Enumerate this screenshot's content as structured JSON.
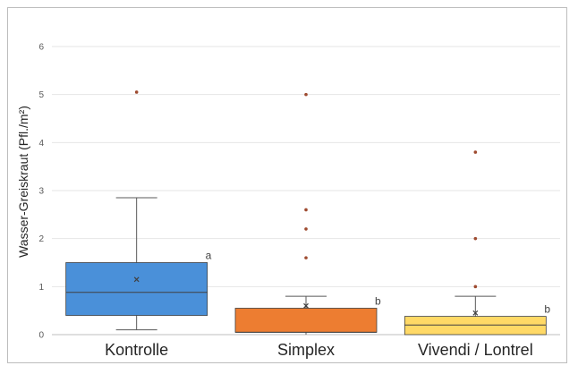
{
  "chart_data": {
    "type": "boxplot",
    "ylabel": "Wasser-Greiskraut (Pfl./m²)",
    "ylim": [
      0,
      6
    ],
    "yticks": [
      0,
      1,
      2,
      3,
      4,
      5,
      6
    ],
    "grid": true,
    "categories": [
      "Kontrolle",
      "Simplex",
      "Vivendi / Lontrel"
    ],
    "series": [
      {
        "category": "Kontrolle",
        "color": "#4a90d9",
        "whisker_low": 0.1,
        "q1": 0.4,
        "median": 0.88,
        "q3": 1.5,
        "whisker_high": 2.85,
        "mean": 1.15,
        "outliers": [
          5.05
        ],
        "letter": "a"
      },
      {
        "category": "Simplex",
        "color": "#ed7d31",
        "whisker_low": 0,
        "q1": 0.05,
        "median": 0.05,
        "q3": 0.55,
        "whisker_high": 0.8,
        "mean": 0.6,
        "outliers": [
          1.6,
          2.2,
          2.6,
          5.0
        ],
        "letter": "b"
      },
      {
        "category": "Vivendi / Lontrel",
        "color": "#ffd966",
        "whisker_low": 0,
        "q1": 0.0,
        "median": 0.2,
        "q3": 0.38,
        "whisker_high": 0.8,
        "mean": 0.45,
        "outliers": [
          1.0,
          2.0,
          3.8
        ],
        "letter": "b"
      }
    ]
  }
}
